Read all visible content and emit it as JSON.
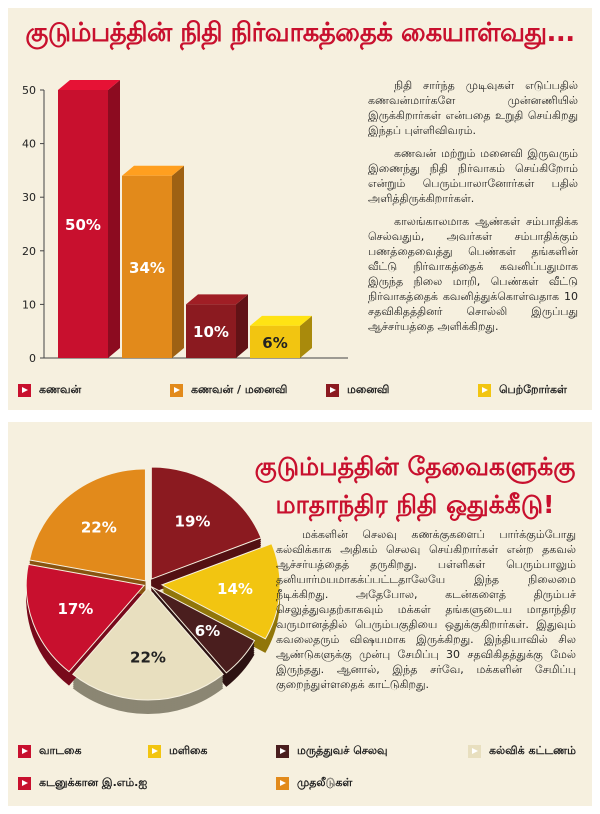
{
  "colors": {
    "red": "#c8102e",
    "orange": "#e28a1b",
    "maroon": "#8b1a20",
    "yellow": "#f2c511",
    "beige": "#e8dfbf",
    "dark_brown": "#4a1e1e",
    "panel_bg": "#f6f0df"
  },
  "section1": {
    "title": "குடும்பத்தின் நிதி நிர்வாகத்தைக் கையாள்வது...",
    "paragraphs": [
      "நிதி சார்ந்த முடிவுகள் எடுப்பதில் கணவன்மார்களே முன்னணியில் இருக்கிறார்கள் என்பதை உறுதி செய்கிறது இந்தப் புள்ளிவிவரம்.",
      "கணவன் மற்றும் மனைவி இருவரும் இணைந்து நிதி நிர்வாகம் செய்கிறோம் என்றும் பெரும்பாலானோர்கள் பதில் அளித்திருக்கிறார்கள்.",
      "காலங்காலமாக ஆண்கள் சம்பாதிக்க செல்வதும், அவர்கள் சம்பாதிக்கும் பணத்தைவைத்து பெண்கள் தங்களின் வீட்டு நிர்வாகத்தைக் கவனிப்பதுமாக இருந்த நிலை மாறி, பெண்கள் வீட்டு நிர்வாகத்தைக் கவனித்துக்கொள்வதாக 10 சதவிகிதத்தினர் சொல்லி இருப்பது ஆச்சர்யத்தை அளிக்கிறது."
    ],
    "legend": [
      "கணவன்",
      "கணவன் / மனைவி",
      "மனைவி",
      "பெற்றோர்கள்"
    ]
  },
  "section2": {
    "title_line1": "குடும்பத்தின் தேவைகளுக்கு",
    "title_line2": "மாதாந்திர நிதி ஒதுக்கீடு!",
    "paragraph": "மக்களின் செலவு கணக்குகளைப் பார்க்கும்போது கல்விக்காக அதிகம் செலவு செய்கிறார்கள் என்ற தகவல் ஆச்சர்யத்தைத் தருகிறது. பள்ளிகள் பெரும்பாலும் தனியார்மயமாகக்ப்பட்டதாலேயே இந்த நிலைமை நீடிக்கிறது. அதேபோல, கடன்களைத் திரும்பச் செலுத்துவதற்காகவும் மக்கள் தங்களுடைய மாதாந்திர வருமானத்தில் பெரும்பகுதியை ஒதுக்குகிறார்கள். இதுவும் கவலைதரும் விஷயமாக இருக்கிறது. இந்தியாவில் சில ஆண்டுகளுக்கு முன்பு சேமிப்பு 30 சதவிகிதத்துக்கு மேல் இருந்தது. ஆனால், இந்த சர்வே, மக்களின் சேமிப்பு குறைந்துள்ளதைக் காட்டுகிறது.",
    "legend": [
      "வாடகை",
      "மளிகை",
      "மருத்துவச் செலவு",
      "கல்விக் கட்டணம்",
      "கடனுக்கான இ.எம்.ஐ",
      "முதலீடுகள்"
    ]
  },
  "chart_data": [
    {
      "type": "bar",
      "categories": [
        "கணவன்",
        "கணவன் / மனைவி",
        "மனைவி",
        "பெற்றோர்கள்"
      ],
      "values": [
        50,
        34,
        10,
        6
      ],
      "data_labels": [
        "50%",
        "34%",
        "10%",
        "6%"
      ],
      "colors": [
        "#c8102e",
        "#e28a1b",
        "#8b1a20",
        "#f2c511"
      ],
      "yticks": [
        "0",
        "10",
        "20",
        "30",
        "40",
        "50"
      ],
      "ylim": [
        0,
        50
      ],
      "grid": false,
      "legend_position": "bottom"
    },
    {
      "type": "pie",
      "labels": [
        "முதலீடுகள்",
        "மருத்துவச் செலவு",
        "மளிகை",
        "வாடகை",
        "கல்விக் கட்டணம்",
        "கடனுக்கான இ.எம்.ஐ"
      ],
      "values": [
        19,
        14,
        6,
        22,
        17,
        22
      ],
      "data_labels": [
        "19%",
        "14%",
        "6%",
        "22%",
        "17%",
        "22%"
      ],
      "legend_position": "bottom"
    }
  ]
}
